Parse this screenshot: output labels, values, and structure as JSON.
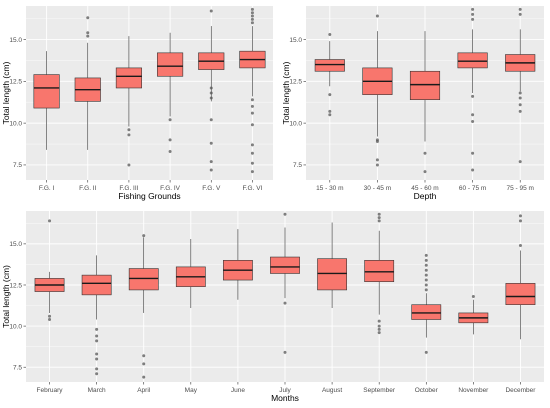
{
  "style": {
    "panel_bg": "#ebebeb",
    "grid_major": "#ffffff",
    "box_fill": "#f8766d",
    "box_stroke": "#333333",
    "outlier": "#555555"
  },
  "chart_data": [
    {
      "type": "boxplot",
      "xlabel": "Fishing Grounds",
      "ylabel": "Total length (cm)",
      "ylim": [
        6.6,
        17.0
      ],
      "yticks": [
        7.5,
        10.0,
        12.5,
        15.0
      ],
      "ytick_labels": [
        "7.5",
        "10.0",
        "12.5",
        "15.0"
      ],
      "categories": [
        "F.G. I",
        "F.G. II",
        "F.G. III",
        "F.G. IV",
        "F.G. V",
        "F.G. VI"
      ],
      "boxes": [
        {
          "min": 8.4,
          "q1": 10.9,
          "median": 12.1,
          "q3": 12.9,
          "max": 14.3,
          "outliers": []
        },
        {
          "min": 8.4,
          "q1": 11.3,
          "median": 12.0,
          "q3": 12.7,
          "max": 14.8,
          "outliers": [
            16.3,
            15.4,
            15.2
          ]
        },
        {
          "min": 9.8,
          "q1": 12.1,
          "median": 12.8,
          "q3": 13.3,
          "max": 15.2,
          "outliers": [
            9.6,
            9.3,
            7.5
          ]
        },
        {
          "min": 10.4,
          "q1": 12.8,
          "median": 13.4,
          "q3": 14.2,
          "max": 15.4,
          "outliers": [
            10.2,
            9.0,
            8.3
          ]
        },
        {
          "min": 11.3,
          "q1": 13.2,
          "median": 13.7,
          "q3": 14.2,
          "max": 15.8,
          "outliers": [
            16.7,
            12.1,
            11.8,
            11.5,
            10.2,
            8.8,
            7.7,
            7.2
          ]
        },
        {
          "min": 11.6,
          "q1": 13.3,
          "median": 13.8,
          "q3": 14.3,
          "max": 15.8,
          "outliers": [
            16.8,
            16.6,
            16.4,
            16.2,
            16.0,
            11.4,
            11.0,
            10.6,
            9.9,
            8.7,
            8.2,
            7.6,
            7.1
          ]
        }
      ]
    },
    {
      "type": "boxplot",
      "xlabel": "Depth",
      "ylabel": "Total length (cm)",
      "ylim": [
        6.6,
        17.0
      ],
      "yticks": [
        7.5,
        10.0,
        12.5,
        15.0
      ],
      "ytick_labels": [
        "7.5",
        "10.0",
        "12.5",
        "15.0"
      ],
      "categories": [
        "15 - 30 m",
        "30 - 45 m",
        "45 - 60 m",
        "60 - 75 m",
        "75 - 95 m"
      ],
      "boxes": [
        {
          "min": 12.2,
          "q1": 13.1,
          "median": 13.5,
          "q3": 13.8,
          "max": 14.9,
          "outliers": [
            15.3,
            11.7,
            10.7,
            10.5
          ]
        },
        {
          "min": 9.2,
          "q1": 11.7,
          "median": 12.5,
          "q3": 13.3,
          "max": 15.5,
          "outliers": [
            16.4,
            9.0,
            8.9,
            7.8,
            7.5
          ]
        },
        {
          "min": 8.9,
          "q1": 11.4,
          "median": 12.3,
          "q3": 13.1,
          "max": 15.5,
          "outliers": [
            8.2,
            7.1
          ]
        },
        {
          "min": 11.8,
          "q1": 13.3,
          "median": 13.7,
          "q3": 14.2,
          "max": 15.6,
          "outliers": [
            16.8,
            16.5,
            16.2,
            11.6,
            10.5,
            10.1,
            8.2,
            7.2
          ]
        },
        {
          "min": 11.9,
          "q1": 13.1,
          "median": 13.6,
          "q3": 14.1,
          "max": 15.6,
          "outliers": [
            16.8,
            16.5,
            11.8,
            11.5,
            11.1,
            10.7,
            7.7
          ]
        }
      ]
    },
    {
      "type": "boxplot",
      "xlabel": "Months",
      "ylabel": "Total length (cm)",
      "ylim": [
        6.6,
        17.0
      ],
      "yticks": [
        7.5,
        10.0,
        12.5,
        15.0
      ],
      "ytick_labels": [
        "7.5",
        "10.0",
        "12.5",
        "15.0"
      ],
      "categories": [
        "February",
        "March",
        "April",
        "May",
        "June",
        "July",
        "August",
        "September",
        "October",
        "November",
        "December"
      ],
      "boxes": [
        {
          "min": 10.8,
          "q1": 12.1,
          "median": 12.5,
          "q3": 12.9,
          "max": 13.3,
          "outliers": [
            16.4,
            10.6,
            10.4
          ]
        },
        {
          "min": 10.4,
          "q1": 11.9,
          "median": 12.6,
          "q3": 13.1,
          "max": 14.3,
          "outliers": [
            9.8,
            9.4,
            9.1,
            8.3,
            8.0,
            7.4,
            7.1
          ]
        },
        {
          "min": 10.8,
          "q1": 12.2,
          "median": 12.9,
          "q3": 13.5,
          "max": 15.4,
          "outliers": [
            15.5,
            8.2,
            7.7,
            6.9
          ]
        },
        {
          "min": 11.1,
          "q1": 12.4,
          "median": 13.0,
          "q3": 13.6,
          "max": 15.3,
          "outliers": []
        },
        {
          "min": 11.6,
          "q1": 12.8,
          "median": 13.4,
          "q3": 14.0,
          "max": 15.9,
          "outliers": []
        },
        {
          "min": 11.7,
          "q1": 13.2,
          "median": 13.6,
          "q3": 14.2,
          "max": 16.0,
          "outliers": [
            16.8,
            11.4,
            8.4
          ]
        },
        {
          "min": 11.1,
          "q1": 12.2,
          "median": 13.2,
          "q3": 14.1,
          "max": 16.3,
          "outliers": []
        },
        {
          "min": 10.7,
          "q1": 12.7,
          "median": 13.3,
          "q3": 14.0,
          "max": 15.8,
          "outliers": [
            16.8,
            16.6,
            16.4,
            10.3,
            10.0,
            9.8,
            9.6
          ]
        },
        {
          "min": 9.3,
          "q1": 10.4,
          "median": 10.8,
          "q3": 11.3,
          "max": 12.0,
          "outliers": [
            14.3,
            14.0,
            13.7,
            13.4,
            13.1,
            12.8,
            12.5,
            12.2,
            8.4
          ]
        },
        {
          "min": 9.5,
          "q1": 10.2,
          "median": 10.5,
          "q3": 10.8,
          "max": 11.6,
          "outliers": [
            11.8
          ]
        },
        {
          "min": 9.2,
          "q1": 11.3,
          "median": 11.8,
          "q3": 12.6,
          "max": 14.6,
          "outliers": [
            16.7,
            16.4,
            14.9
          ]
        }
      ]
    }
  ]
}
